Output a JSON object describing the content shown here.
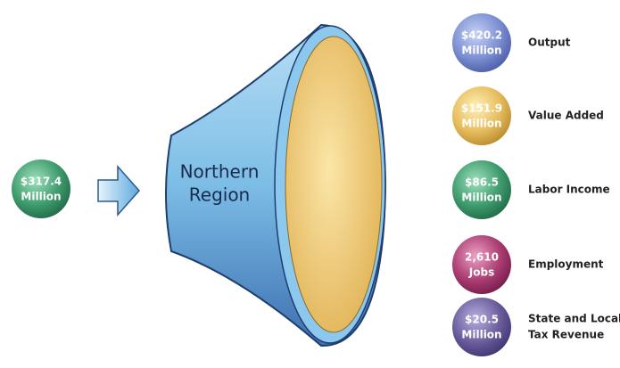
{
  "input": {
    "line1": "$317.4",
    "line2": "Million"
  },
  "region": {
    "line1": "Northern",
    "line2": "Region"
  },
  "outputs": [
    {
      "value_line1": "$420.2",
      "value_line2": "Million",
      "label_lines": [
        "Output"
      ]
    },
    {
      "value_line1": "$151.9",
      "value_line2": "Million",
      "label_lines": [
        "Value Added"
      ]
    },
    {
      "value_line1": "$86.5",
      "value_line2": "Million",
      "label_lines": [
        "Labor Income"
      ]
    },
    {
      "value_line1": "2,610",
      "value_line2": "Jobs",
      "label_lines": [
        "Employment"
      ]
    },
    {
      "value_line1": "$20.5",
      "value_line2": "Million",
      "label_lines": [
        "State and Local",
        "Tax Revenue"
      ]
    }
  ]
}
